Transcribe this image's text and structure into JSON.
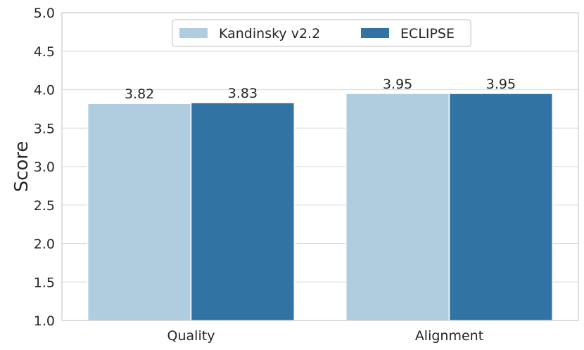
{
  "chart_data": {
    "type": "bar",
    "categories": [
      "Quality",
      "Alignment"
    ],
    "series": [
      {
        "name": "Kandinsky v2.2",
        "values": [
          3.82,
          3.95
        ],
        "color": "#b0cde0"
      },
      {
        "name": "ECLIPSE",
        "values": [
          3.83,
          3.95
        ],
        "color": "#3174a3"
      }
    ],
    "data_labels": [
      [
        "3.82",
        "3.95"
      ],
      [
        "3.83",
        "3.95"
      ]
    ],
    "xlabel": "",
    "ylabel": "Score",
    "ylim": [
      1.0,
      5.0
    ],
    "yticks": [
      "1.0",
      "1.5",
      "2.0",
      "2.5",
      "3.0",
      "3.5",
      "4.0",
      "4.5",
      "5.0"
    ],
    "grid": "horizontal",
    "legend_position": "top-center"
  }
}
